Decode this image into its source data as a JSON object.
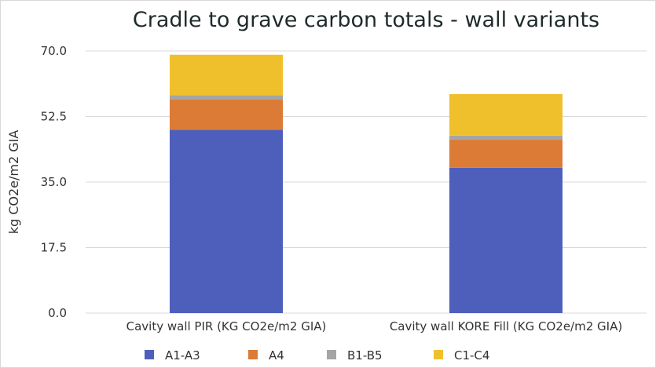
{
  "chart_data": {
    "type": "bar",
    "stacked": true,
    "title": "Cradle to grave carbon totals - wall variants",
    "xlabel": "",
    "ylabel": "kg CO2e/m2 GIA",
    "ylim": [
      0,
      70
    ],
    "yticks": [
      "0.0",
      "17.5",
      "35.0",
      "52.5",
      "70.0"
    ],
    "grid": true,
    "legend_position": "bottom",
    "categories": [
      "Cavity wall PIR (KG CO2e/m2 GIA)",
      "Cavity wall KORE Fill (KG CO2e/m2 GIA)"
    ],
    "series": [
      {
        "name": "A1-A3",
        "color": "#4e5fbb",
        "values": [
          49.0,
          38.8
        ]
      },
      {
        "name": "A4",
        "color": "#db7b36",
        "values": [
          8.0,
          7.5
        ]
      },
      {
        "name": "B1-B5",
        "color": "#a5a5a5",
        "values": [
          1.2,
          1.1
        ]
      },
      {
        "name": "C1-C4",
        "color": "#f0c02c",
        "values": [
          10.8,
          11.1
        ]
      }
    ]
  }
}
